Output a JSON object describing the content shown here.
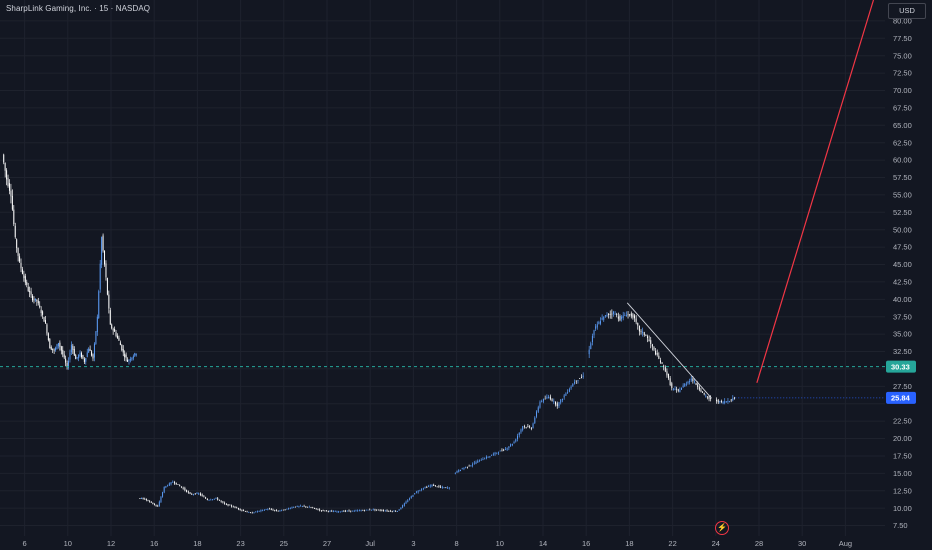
{
  "header": {
    "symbol_line": "SharpLink Gaming, Inc. · 15 · NASDAQ"
  },
  "currency": "USD",
  "chart_data": {
    "type": "line",
    "style": "candlestick",
    "ylim": [
      6,
      83
    ],
    "y_ticks": [
      7.5,
      10,
      12.5,
      15,
      17.5,
      20,
      22.5,
      25,
      27.5,
      30,
      32.5,
      35,
      37.5,
      40,
      42.5,
      45,
      47.5,
      50,
      52.5,
      55,
      57.5,
      60,
      62.5,
      65,
      67.5,
      70,
      72.5,
      75,
      77.5,
      80
    ],
    "x_ticks": [
      {
        "label": "6",
        "t": 1
      },
      {
        "label": "10",
        "t": 3
      },
      {
        "label": "12",
        "t": 5
      },
      {
        "label": "16",
        "t": 7
      },
      {
        "label": "18",
        "t": 9
      },
      {
        "label": "23",
        "t": 11
      },
      {
        "label": "25",
        "t": 13
      },
      {
        "label": "27",
        "t": 15
      },
      {
        "label": "Jul",
        "t": 17
      },
      {
        "label": "3",
        "t": 19
      },
      {
        "label": "8",
        "t": 21
      },
      {
        "label": "10",
        "t": 23
      },
      {
        "label": "14",
        "t": 25
      },
      {
        "label": "16",
        "t": 27
      },
      {
        "label": "18",
        "t": 29
      },
      {
        "label": "22",
        "t": 31
      },
      {
        "label": "24",
        "t": 33
      },
      {
        "label": "28",
        "t": 35
      },
      {
        "label": "30",
        "t": 37
      },
      {
        "label": "Aug",
        "t": 39
      }
    ],
    "series": [
      {
        "segments": [
          [
            [
              0.0,
              60.8
            ],
            [
              0.2,
              57.3
            ],
            [
              0.4,
              55.1
            ],
            [
              0.6,
              48.6
            ],
            [
              0.8,
              45.2
            ],
            [
              1.0,
              43.1
            ],
            [
              1.2,
              41.3
            ],
            [
              1.4,
              40.1
            ],
            [
              1.6,
              39.8
            ],
            [
              1.8,
              38.2
            ],
            [
              2.0,
              36.4
            ],
            [
              2.2,
              33.1
            ],
            [
              2.4,
              32.6
            ],
            [
              2.6,
              33.8
            ],
            [
              2.8,
              32.1
            ],
            [
              3.0,
              30.2
            ],
            [
              3.2,
              33.5
            ],
            [
              3.4,
              31.4
            ],
            [
              3.6,
              32.2
            ],
            [
              3.8,
              31.1
            ],
            [
              4.0,
              33.0
            ],
            [
              4.2,
              31.5
            ],
            [
              4.4,
              37.4
            ],
            [
              4.6,
              48.9
            ],
            [
              4.8,
              43.0
            ],
            [
              5.0,
              36.2
            ],
            [
              5.2,
              35.3
            ],
            [
              5.4,
              34.0
            ],
            [
              5.6,
              32.3
            ],
            [
              5.8,
              31.1
            ],
            [
              6.0,
              31.7
            ],
            [
              6.2,
              32.3
            ]
          ],
          [
            [
              6.3,
              11.5
            ],
            [
              6.6,
              11.3
            ],
            [
              6.9,
              10.8
            ],
            [
              7.2,
              10.2
            ],
            [
              7.5,
              13.0
            ],
            [
              7.9,
              13.8
            ],
            [
              8.3,
              13.0
            ],
            [
              8.7,
              12.0
            ],
            [
              9.1,
              12.1
            ],
            [
              9.5,
              11.2
            ],
            [
              9.9,
              11.4
            ],
            [
              10.3,
              10.6
            ],
            [
              10.7,
              10.2
            ],
            [
              11.1,
              9.7
            ],
            [
              11.5,
              9.3
            ],
            [
              11.9,
              9.6
            ],
            [
              12.3,
              9.9
            ],
            [
              12.7,
              9.6
            ],
            [
              13.1,
              9.8
            ],
            [
              13.5,
              10.2
            ],
            [
              13.9,
              10.3
            ],
            [
              14.3,
              10.1
            ],
            [
              14.7,
              9.7
            ],
            [
              15.1,
              9.6
            ],
            [
              15.5,
              9.5
            ],
            [
              15.9,
              9.6
            ],
            [
              16.3,
              9.6
            ],
            [
              16.7,
              9.7
            ],
            [
              17.1,
              9.8
            ],
            [
              17.5,
              9.7
            ],
            [
              17.9,
              9.6
            ],
            [
              18.3,
              9.6
            ],
            [
              18.7,
              10.9
            ],
            [
              19.1,
              12.2
            ],
            [
              19.5,
              12.9
            ],
            [
              19.9,
              13.3
            ],
            [
              20.3,
              13.0
            ],
            [
              20.7,
              12.9
            ]
          ],
          [
            [
              20.9,
              15.0
            ],
            [
              21.3,
              15.7
            ],
            [
              21.7,
              16.2
            ],
            [
              22.1,
              16.9
            ],
            [
              22.5,
              17.4
            ],
            [
              22.9,
              18.0
            ],
            [
              23.3,
              18.5
            ],
            [
              23.7,
              19.5
            ],
            [
              24.1,
              21.8
            ],
            [
              24.5,
              21.5
            ],
            [
              24.9,
              25.3
            ],
            [
              25.3,
              26.0
            ],
            [
              25.7,
              24.8
            ],
            [
              26.1,
              26.5
            ],
            [
              26.5,
              28.2
            ],
            [
              26.9,
              29.0
            ]
          ],
          [
            [
              27.1,
              32.0
            ],
            [
              27.4,
              35.6
            ],
            [
              27.7,
              37.0
            ],
            [
              28.0,
              37.8
            ],
            [
              28.3,
              38.1
            ],
            [
              28.6,
              37.2
            ],
            [
              28.9,
              37.9
            ],
            [
              29.2,
              37.6
            ],
            [
              29.5,
              35.5
            ],
            [
              29.8,
              34.8
            ],
            [
              30.1,
              33.1
            ],
            [
              30.4,
              31.4
            ],
            [
              30.7,
              29.8
            ],
            [
              31.0,
              27.2
            ],
            [
              31.3,
              26.8
            ],
            [
              31.6,
              27.8
            ],
            [
              31.9,
              28.6
            ],
            [
              32.2,
              27.5
            ],
            [
              32.5,
              26.2
            ],
            [
              32.8,
              25.6
            ]
          ],
          [
            [
              33.0,
              25.5
            ],
            [
              33.3,
              25.2
            ],
            [
              33.6,
              25.4
            ],
            [
              33.9,
              25.84
            ]
          ]
        ]
      }
    ],
    "horizontal_line": {
      "value": 30.33,
      "label": "30.33",
      "color": "#26a69a"
    },
    "last_price": {
      "value": 25.84,
      "label": "25.84",
      "color": "#2962ff"
    },
    "trendline": {
      "from": [
        28.9,
        39.5
      ],
      "to": [
        32.8,
        25.8
      ],
      "color": "#d1d4dc"
    },
    "projection": {
      "from": [
        34.9,
        28.0
      ],
      "to": [
        40.3,
        83.0
      ],
      "color": "#f23645"
    },
    "candle_up_color": "#5b9cf6",
    "candle_down_color": "#ffffff",
    "grid": true,
    "grid_color": "#1e222d"
  }
}
